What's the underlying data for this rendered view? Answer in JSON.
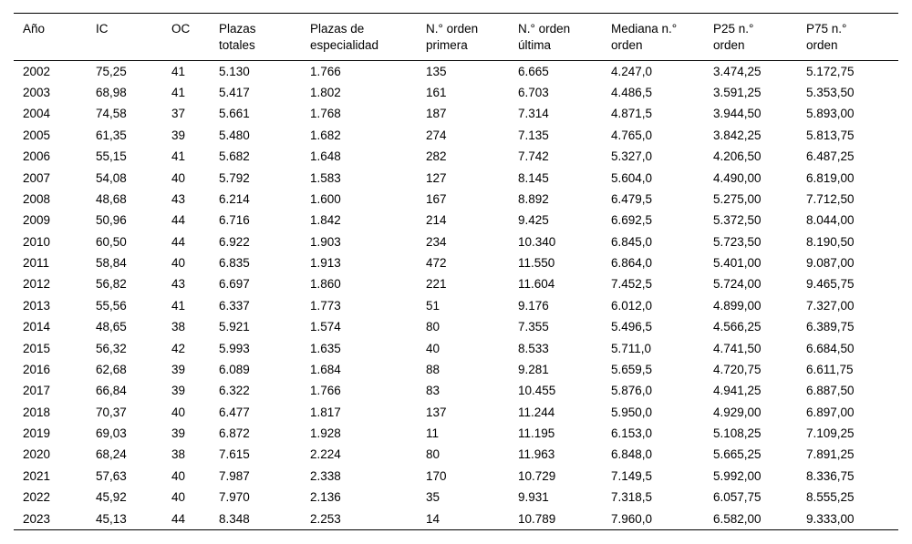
{
  "chart_data": {
    "type": "table",
    "columns": [
      "Año",
      "IC",
      "OC",
      "Plazas\ntotales",
      "Plazas de\nespecialidad",
      "N.° orden\nprimera",
      "N.° orden\núltima",
      "Mediana n.°\norden",
      "P25 n.°\norden",
      "P75 n.°\norden"
    ],
    "rows": [
      [
        "2002",
        "75,25",
        "41",
        "5.130",
        "1.766",
        "135",
        "6.665",
        "4.247,0",
        "3.474,25",
        "5.172,75"
      ],
      [
        "2003",
        "68,98",
        "41",
        "5.417",
        "1.802",
        "161",
        "6.703",
        "4.486,5",
        "3.591,25",
        "5.353,50"
      ],
      [
        "2004",
        "74,58",
        "37",
        "5.661",
        "1.768",
        "187",
        "7.314",
        "4.871,5",
        "3.944,50",
        "5.893,00"
      ],
      [
        "2005",
        "61,35",
        "39",
        "5.480",
        "1.682",
        "274",
        "7.135",
        "4.765,0",
        "3.842,25",
        "5.813,75"
      ],
      [
        "2006",
        "55,15",
        "41",
        "5.682",
        "1.648",
        "282",
        "7.742",
        "5.327,0",
        "4.206,50",
        "6.487,25"
      ],
      [
        "2007",
        "54,08",
        "40",
        "5.792",
        "1.583",
        "127",
        "8.145",
        "5.604,0",
        "4.490,00",
        "6.819,00"
      ],
      [
        "2008",
        "48,68",
        "43",
        "6.214",
        "1.600",
        "167",
        "8.892",
        "6.479,5",
        "5.275,00",
        "7.712,50"
      ],
      [
        "2009",
        "50,96",
        "44",
        "6.716",
        "1.842",
        "214",
        "9.425",
        "6.692,5",
        "5.372,50",
        "8.044,00"
      ],
      [
        "2010",
        "60,50",
        "44",
        "6.922",
        "1.903",
        "234",
        "10.340",
        "6.845,0",
        "5.723,50",
        "8.190,50"
      ],
      [
        "2011",
        "58,84",
        "40",
        "6.835",
        "1.913",
        "472",
        "11.550",
        "6.864,0",
        "5.401,00",
        "9.087,00"
      ],
      [
        "2012",
        "56,82",
        "43",
        "6.697",
        "1.860",
        "221",
        "11.604",
        "7.452,5",
        "5.724,00",
        "9.465,75"
      ],
      [
        "2013",
        "55,56",
        "41",
        "6.337",
        "1.773",
        "51",
        "9.176",
        "6.012,0",
        "4.899,00",
        "7.327,00"
      ],
      [
        "2014",
        "48,65",
        "38",
        "5.921",
        "1.574",
        "80",
        "7.355",
        "5.496,5",
        "4.566,25",
        "6.389,75"
      ],
      [
        "2015",
        "56,32",
        "42",
        "5.993",
        "1.635",
        "40",
        "8.533",
        "5.711,0",
        "4.741,50",
        "6.684,50"
      ],
      [
        "2016",
        "62,68",
        "39",
        "6.089",
        "1.684",
        "88",
        "9.281",
        "5.659,5",
        "4.720,75",
        "6.611,75"
      ],
      [
        "2017",
        "66,84",
        "39",
        "6.322",
        "1.766",
        "83",
        "10.455",
        "5.876,0",
        "4.941,25",
        "6.887,50"
      ],
      [
        "2018",
        "70,37",
        "40",
        "6.477",
        "1.817",
        "137",
        "11.244",
        "5.950,0",
        "4.929,00",
        "6.897,00"
      ],
      [
        "2019",
        "69,03",
        "39",
        "6.872",
        "1.928",
        "11",
        "11.195",
        "6.153,0",
        "5.108,25",
        "7.109,25"
      ],
      [
        "2020",
        "68,24",
        "38",
        "7.615",
        "2.224",
        "80",
        "11.963",
        "6.848,0",
        "5.665,25",
        "7.891,25"
      ],
      [
        "2021",
        "57,63",
        "40",
        "7.987",
        "2.338",
        "170",
        "10.729",
        "7.149,5",
        "5.992,00",
        "8.336,75"
      ],
      [
        "2022",
        "45,92",
        "40",
        "7.970",
        "2.136",
        "35",
        "9.931",
        "7.318,5",
        "6.057,75",
        "8.555,25"
      ],
      [
        "2023",
        "45,13",
        "44",
        "8.348",
        "2.253",
        "14",
        "10.789",
        "7.960,0",
        "6.582,00",
        "9.333,00"
      ]
    ]
  }
}
